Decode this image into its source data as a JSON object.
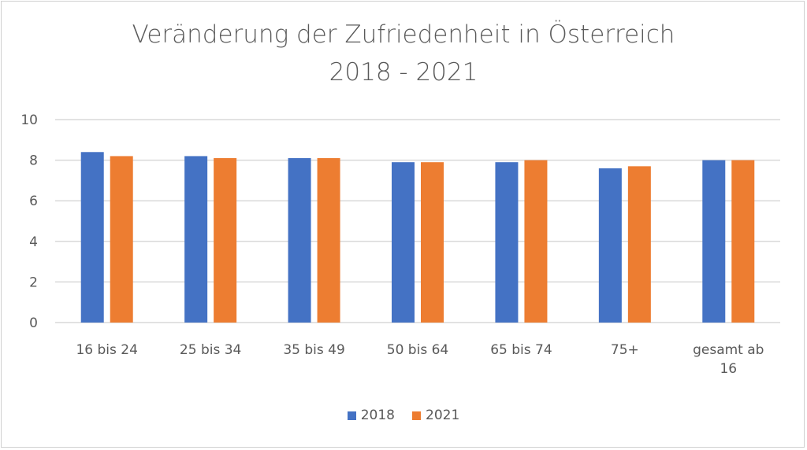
{
  "chart_data": {
    "type": "bar",
    "title": [
      "Veränderung der Zufriedenheit in Österreich",
      "2018 - 2021"
    ],
    "categories": [
      [
        "16 bis 24"
      ],
      [
        "25 bis 34"
      ],
      [
        "35 bis 49"
      ],
      [
        "50 bis 64"
      ],
      [
        "65 bis 74"
      ],
      [
        "75+"
      ],
      [
        "gesamt ab",
        "16"
      ]
    ],
    "series": [
      {
        "name": "2018",
        "color": "#4472C4",
        "values": [
          8.4,
          8.2,
          8.1,
          7.9,
          7.9,
          7.6,
          8.0
        ]
      },
      {
        "name": "2021",
        "color": "#ED7D31",
        "values": [
          8.2,
          8.1,
          8.1,
          7.9,
          8.0,
          7.7,
          8.0
        ]
      }
    ],
    "yticks": [
      "0",
      "2",
      "4",
      "6",
      "8",
      "10"
    ],
    "ylim": [
      0,
      10
    ],
    "grid": true,
    "legend": "bottom",
    "xlabel": "",
    "ylabel": ""
  }
}
